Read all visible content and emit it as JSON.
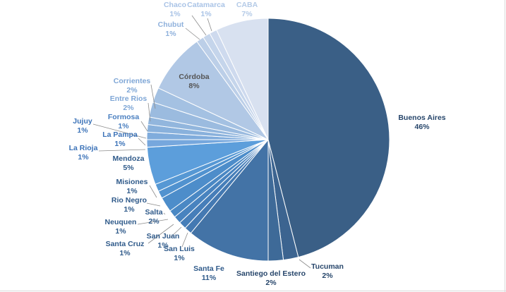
{
  "chart_data": {
    "type": "pie",
    "title": "",
    "labels": [
      "Buenos Aires",
      "Tucuman",
      "Santiego del Estero",
      "Santa Fe",
      "San Luis",
      "San Juan",
      "Santa Cruz",
      "Neuquen",
      "Salta",
      "Rio Negro",
      "Misiones",
      "Mendoza",
      "La Rioja",
      "La Pampa",
      "Jujuy",
      "Formosa",
      "Entre Rios",
      "Corrientes",
      "Córdoba",
      "Chubut",
      "Chaco",
      "Catamarca",
      "CABA"
    ],
    "values": [
      46,
      2,
      2,
      11,
      1,
      1,
      1,
      1,
      2,
      1,
      1,
      5,
      1,
      1,
      1,
      1,
      2,
      2,
      8,
      1,
      1,
      1,
      7
    ],
    "value_labels": [
      "46%",
      "2%",
      "2%",
      "11%",
      "1%",
      "1%",
      "1%",
      "1%",
      "2%",
      "1%",
      "1%",
      "5%",
      "1%",
      "1%",
      "1%",
      "1%",
      "2%",
      "2%",
      "8%",
      "1%",
      "1%",
      "1%",
      "7%"
    ],
    "colors": [
      "#3a5f86",
      "#3c6490",
      "#3e6a98",
      "#4373a6",
      "#4479b2",
      "#467eb9",
      "#4883bf",
      "#4a88c4",
      "#4d8dca",
      "#5192cf",
      "#5698d4",
      "#5c9edb",
      "#76a7dd",
      "#80acdc",
      "#89b1dc",
      "#92b6dd",
      "#9bbbdf",
      "#a4c1e2",
      "#b1c8e5",
      "#bccfe8",
      "#c5d5eb",
      "#cedaee",
      "#d8e1f0"
    ],
    "label_colors": [
      "#27466b",
      "#27466b",
      "#27466b",
      "#2f5a8a",
      "#2f5a8a",
      "#2f5a8a",
      "#2f5a8a",
      "#2f5a8a",
      "#2f5a8a",
      "#2f5a8a",
      "#2f5a8a",
      "#2f5a8a",
      "#3c73b8",
      "#3c73b8",
      "#3c73b8",
      "#4a7fc0",
      "#7ea6d6",
      "#7ea6d6",
      "#555555",
      "#8fb1dc",
      "#a9c3e6",
      "#a9c3e6",
      "#b5cbe7"
    ],
    "legend": "none"
  }
}
